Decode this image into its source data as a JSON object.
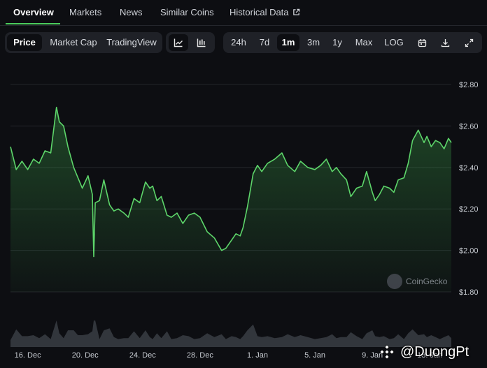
{
  "tabs": [
    {
      "label": "Overview",
      "active": true
    },
    {
      "label": "Markets"
    },
    {
      "label": "News"
    },
    {
      "label": "Similar Coins"
    },
    {
      "label": "Historical Data",
      "icon": "external-link-icon"
    }
  ],
  "chart_type_toggle": [
    "Price",
    "Market Cap",
    "TradingView"
  ],
  "view_icons": [
    "line-chart-icon",
    "candlestick-icon"
  ],
  "ranges": [
    "24h",
    "7d",
    "1m",
    "3m",
    "1y",
    "Max",
    "LOG"
  ],
  "selected_range": "1m",
  "tool_icons": [
    "calendar-icon",
    "download-icon",
    "expand-icon"
  ],
  "watermark": "CoinGecko",
  "overlay": "@DuongPt",
  "colors": {
    "line": "#5dd56a",
    "volume": "#3a3d44",
    "accent": "#4bcc5c"
  },
  "chart_data": {
    "type": "area",
    "x_ticks": [
      "16. Dec",
      "20. Dec",
      "24. Dec",
      "28. Dec",
      "1. Jan",
      "5. Jan",
      "9. Jan",
      "13. Jan"
    ],
    "y_ticks": [
      "$2.80",
      "$2.60",
      "$2.40",
      "$2.20",
      "$2.00",
      "$1.80"
    ],
    "ylim": [
      1.8,
      2.8
    ],
    "xlim": [
      14.8,
      45.5
    ],
    "x_unit": "day (Dec 1 = 1)",
    "series": [
      {
        "x": [
          14.8,
          15.2,
          15.6,
          16.0,
          16.4,
          16.8,
          17.2,
          17.6,
          18.0,
          18.2,
          18.5,
          18.8,
          19.2,
          19.5,
          19.8,
          20.2,
          20.5,
          20.6,
          20.7,
          21.0,
          21.3,
          21.7,
          22.0,
          22.3,
          22.7,
          23.0,
          23.4,
          23.8,
          24.2,
          24.5,
          24.7,
          25.0,
          25.3,
          25.7,
          26.0,
          26.4,
          26.8,
          27.2,
          27.6,
          28.0,
          28.5,
          29.0,
          29.5,
          29.8,
          30.2,
          30.5,
          30.8,
          31.0,
          31.3,
          31.7,
          32.0,
          32.3,
          32.7,
          33.2,
          33.7,
          34.1,
          34.6,
          35.0,
          35.5,
          36.0,
          36.4,
          36.8,
          37.2,
          37.5,
          37.8,
          38.2,
          38.5,
          38.9,
          39.3,
          39.6,
          40.0,
          40.2,
          40.5,
          40.8,
          41.2,
          41.5,
          41.8,
          42.2,
          42.5,
          42.8,
          43.2,
          43.6,
          43.8,
          44.1,
          44.4,
          44.7,
          45.0,
          45.3,
          45.5
        ],
        "y": [
          2.5,
          2.39,
          2.43,
          2.39,
          2.44,
          2.42,
          2.48,
          2.47,
          2.69,
          2.62,
          2.6,
          2.5,
          2.4,
          2.35,
          2.3,
          2.36,
          2.27,
          1.97,
          2.23,
          2.24,
          2.34,
          2.22,
          2.19,
          2.2,
          2.18,
          2.16,
          2.25,
          2.23,
          2.33,
          2.3,
          2.31,
          2.24,
          2.26,
          2.17,
          2.16,
          2.18,
          2.13,
          2.17,
          2.18,
          2.16,
          2.09,
          2.06,
          2.0,
          2.01,
          2.05,
          2.08,
          2.07,
          2.11,
          2.21,
          2.37,
          2.41,
          2.38,
          2.42,
          2.44,
          2.47,
          2.41,
          2.38,
          2.43,
          2.4,
          2.39,
          2.41,
          2.44,
          2.38,
          2.4,
          2.37,
          2.34,
          2.26,
          2.3,
          2.31,
          2.38,
          2.28,
          2.24,
          2.27,
          2.31,
          2.3,
          2.28,
          2.34,
          2.35,
          2.42,
          2.53,
          2.58,
          2.52,
          2.55,
          2.5,
          2.53,
          2.52,
          2.49,
          2.54,
          2.52
        ]
      }
    ]
  }
}
